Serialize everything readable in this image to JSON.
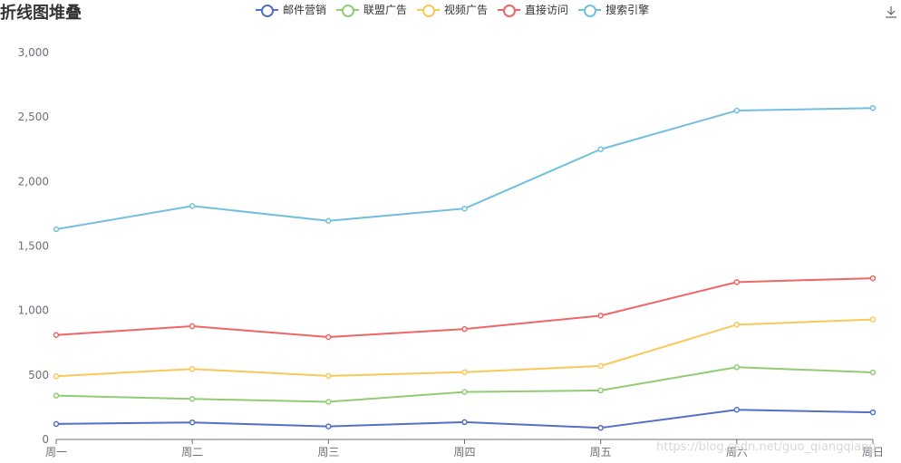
{
  "chart_data": {
    "type": "line",
    "title": "折线图堆叠",
    "categories": [
      "周一",
      "周二",
      "周三",
      "周四",
      "周五",
      "周六",
      "周日"
    ],
    "ylim": [
      0,
      3000
    ],
    "yticks": [
      0,
      500,
      1000,
      1500,
      2000,
      2500,
      3000
    ],
    "ytick_labels": [
      "0",
      "500",
      "1,000",
      "1,500",
      "2,000",
      "2,500",
      "3,000"
    ],
    "grid": false,
    "legend_position": "top",
    "stacked": true,
    "series": [
      {
        "name": "邮件营销",
        "color": "#5470c6",
        "values": [
          120,
          132,
          101,
          134,
          90,
          230,
          210
        ]
      },
      {
        "name": "联盟广告",
        "color": "#91cc75",
        "values": [
          220,
          182,
          191,
          234,
          290,
          330,
          310
        ]
      },
      {
        "name": "视频广告",
        "color": "#fac858",
        "values": [
          150,
          232,
          201,
          154,
          190,
          330,
          410
        ]
      },
      {
        "name": "直接访问",
        "color": "#ee6666",
        "values": [
          320,
          332,
          301,
          334,
          390,
          330,
          320
        ]
      },
      {
        "name": "搜索引擎",
        "color": "#73c0de",
        "values": [
          820,
          932,
          901,
          934,
          1290,
          1330,
          1320
        ]
      }
    ]
  },
  "toolbar": {
    "download_icon": "download-icon"
  },
  "watermark": "https://blog.csdn.net/guo_qiangqiang"
}
